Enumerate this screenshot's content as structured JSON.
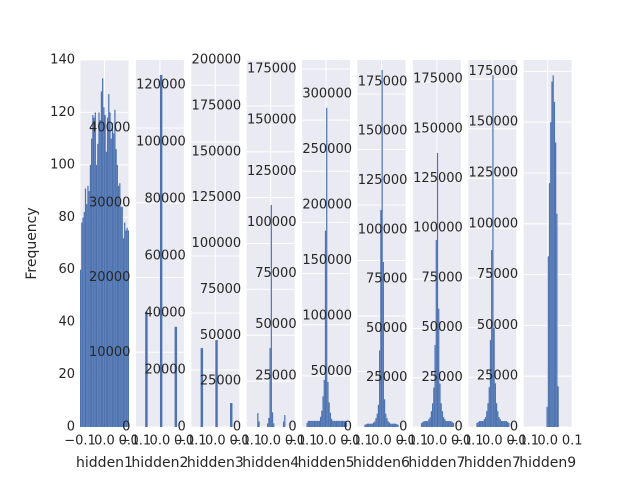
{
  "chart_data": [
    {
      "type": "histogram",
      "xlabel": "hidden1",
      "ylabel": "Frequency",
      "color": "#4c72b0",
      "grid": true,
      "bins": [
        -0.1,
        -0.095,
        -0.09,
        -0.085,
        -0.08,
        -0.075,
        -0.07,
        -0.065,
        -0.06,
        -0.055,
        -0.05,
        -0.045,
        -0.04,
        -0.035,
        -0.03,
        -0.025,
        -0.02,
        -0.015,
        -0.01,
        -0.005,
        0,
        0.005,
        0.01,
        0.015,
        0.02,
        0.025,
        0.03,
        0.035,
        0.04,
        0.045,
        0.05,
        0.055,
        0.06,
        0.065,
        0.07,
        0.075,
        0.08,
        0.085,
        0.09,
        0.095,
        0.1
      ],
      "values": [
        60,
        78,
        80,
        82,
        91,
        85,
        92,
        90,
        100,
        110,
        119,
        118,
        120,
        100,
        108,
        120,
        117,
        128,
        133,
        122,
        119,
        105,
        118,
        127,
        120,
        110,
        116,
        112,
        121,
        106,
        100,
        92,
        93,
        84,
        84,
        72,
        78,
        75,
        76,
        75
      ],
      "xlim": [
        -0.1,
        0.1
      ],
      "xticks": [
        {
          "value": -0.1,
          "label": "−0.1"
        },
        {
          "value": 0,
          "label": "0.0"
        },
        {
          "value": 0.1,
          "label": "0.1"
        }
      ],
      "ylim": [
        0,
        140
      ],
      "yticks": [
        0,
        20,
        40,
        60,
        80,
        100,
        120,
        140
      ]
    },
    {
      "type": "histogram",
      "xlabel": "hidden2",
      "color": "#4c72b0",
      "grid": true,
      "bins": [
        -0.1,
        -0.09,
        -0.08,
        -0.07,
        -0.06,
        -0.05,
        -0.04,
        -0.03,
        -0.02,
        -0.01,
        0,
        0.01,
        0.02,
        0.03,
        0.04,
        0.05,
        0.06,
        0.07,
        0.08,
        0.09,
        0.1
      ],
      "values": [
        0,
        0,
        0,
        0,
        15400,
        0,
        0,
        0,
        0,
        0,
        47100,
        0,
        0,
        0,
        0,
        0,
        13400,
        0,
        0,
        0
      ],
      "xlim": [
        -0.1,
        0.1
      ],
      "xticks": [
        {
          "value": -0.1,
          "label": "−0.1"
        },
        {
          "value": 0,
          "label": "0.0"
        },
        {
          "value": 0.1,
          "label": "0.1"
        }
      ],
      "ylim": [
        0,
        49100
      ],
      "yticks": [
        0,
        10000,
        20000,
        30000,
        40000
      ]
    },
    {
      "type": "histogram",
      "xlabel": "hidden3",
      "color": "#4c72b0",
      "grid": true,
      "bins": [
        -0.1,
        -0.09,
        -0.08,
        -0.07,
        -0.06,
        -0.05,
        -0.04,
        -0.03,
        -0.02,
        -0.01,
        0,
        0.01,
        0.02,
        0.03,
        0.04,
        0.05,
        0.06,
        0.07,
        0.08,
        0.09,
        0.1
      ],
      "values": [
        0,
        0,
        0,
        0,
        27700,
        0,
        0,
        0,
        0,
        0,
        30500,
        0,
        0,
        0,
        0,
        0,
        8400,
        0,
        0,
        0
      ],
      "xlim": [
        -0.1,
        0.1
      ],
      "xticks": [
        {
          "value": -0.1,
          "label": "−0.1"
        },
        {
          "value": 0,
          "label": "0.0"
        },
        {
          "value": 0.1,
          "label": "0.1"
        }
      ],
      "ylim": [
        0,
        128800
      ],
      "yticks": [
        0,
        20000,
        40000,
        60000,
        80000,
        100000,
        120000
      ]
    },
    {
      "type": "histogram",
      "xlabel": "hidden4",
      "color": "#4c72b0",
      "grid": true,
      "bins": [
        -0.1,
        -0.095,
        -0.09,
        -0.085,
        -0.08,
        -0.075,
        -0.07,
        -0.065,
        -0.06,
        -0.055,
        -0.05,
        -0.045,
        -0.04,
        -0.035,
        -0.03,
        -0.025,
        -0.02,
        -0.015,
        -0.01,
        -0.005,
        0,
        0.005,
        0.01,
        0.015,
        0.02,
        0.025,
        0.03,
        0.035,
        0.04,
        0.045,
        0.05,
        0.055,
        0.06,
        0.065,
        0.07,
        0.075,
        0.08,
        0.085,
        0.09,
        0.095,
        0.1
      ],
      "values": [
        0,
        0,
        0,
        0,
        0,
        0,
        0,
        0,
        0,
        7600,
        3000,
        0,
        0,
        0,
        0,
        0,
        0,
        2000,
        5000,
        43000,
        121000,
        8000,
        2000,
        0,
        0,
        0,
        0,
        0,
        0,
        0,
        3000,
        6500,
        0,
        0,
        0,
        0,
        0,
        0,
        0,
        0
      ],
      "xlim": [
        -0.1,
        0.1
      ],
      "xticks": [
        {
          "value": -0.1,
          "label": "−0.1"
        },
        {
          "value": 0,
          "label": "0.0"
        },
        {
          "value": 0.1,
          "label": "0.1"
        }
      ],
      "ylim": [
        0,
        200000
      ],
      "yticks": [
        0,
        25000,
        50000,
        75000,
        100000,
        125000,
        150000,
        175000,
        200000
      ]
    },
    {
      "type": "histogram",
      "xlabel": "hidden5",
      "color": "#4c72b0",
      "grid": true,
      "bins": [
        -0.1,
        -0.095,
        -0.09,
        -0.085,
        -0.08,
        -0.075,
        -0.07,
        -0.065,
        -0.06,
        -0.055,
        -0.05,
        -0.045,
        -0.04,
        -0.035,
        -0.03,
        -0.025,
        -0.02,
        -0.015,
        -0.01,
        -0.005,
        0,
        0.005,
        0.01,
        0.015,
        0.02,
        0.025,
        0.03,
        0.035,
        0.04,
        0.045,
        0.05,
        0.055,
        0.06,
        0.065,
        0.07,
        0.075,
        0.08,
        0.085,
        0.09,
        0.095,
        0.1
      ],
      "values": [
        0,
        0,
        0,
        0,
        2000,
        3000,
        3000,
        3000,
        3000,
        3000,
        3000,
        3000,
        3000,
        3000,
        3000,
        5000,
        8000,
        15000,
        23000,
        96000,
        156000,
        22000,
        12000,
        7000,
        4000,
        3000,
        3000,
        3000,
        3000,
        3000,
        3000,
        3000,
        3000,
        3000,
        3000,
        3000,
        2000,
        0,
        0,
        0
      ],
      "xlim": [
        -0.1,
        0.1
      ],
      "xticks": [
        {
          "value": -0.1,
          "label": "−0.1"
        },
        {
          "value": 0,
          "label": "0.0"
        },
        {
          "value": 0.1,
          "label": "0.1"
        }
      ],
      "ylim": [
        0,
        179400
      ],
      "yticks": [
        0,
        25000,
        50000,
        75000,
        100000,
        125000,
        150000,
        175000
      ]
    },
    {
      "type": "histogram",
      "xlabel": "hidden6",
      "color": "#4c72b0",
      "grid": true,
      "bins": [
        -0.1,
        -0.095,
        -0.09,
        -0.085,
        -0.08,
        -0.075,
        -0.07,
        -0.065,
        -0.06,
        -0.055,
        -0.05,
        -0.045,
        -0.04,
        -0.035,
        -0.03,
        -0.025,
        -0.02,
        -0.015,
        -0.01,
        -0.005,
        0,
        0.005,
        0.01,
        0.015,
        0.02,
        0.025,
        0.03,
        0.035,
        0.04,
        0.045,
        0.05,
        0.055,
        0.06,
        0.065,
        0.07,
        0.075,
        0.08,
        0.085,
        0.09,
        0.095,
        0.1
      ],
      "values": [
        0,
        0,
        0,
        0,
        0,
        0,
        2000,
        2500,
        3000,
        3000,
        3000,
        3000,
        3000,
        4000,
        5000,
        8000,
        12000,
        20000,
        69000,
        195500,
        321600,
        148600,
        25000,
        12000,
        8000,
        5000,
        4000,
        3000,
        3000,
        3000,
        3000,
        3000,
        2500,
        2000,
        0,
        0,
        0,
        0,
        0,
        0
      ],
      "xlim": [
        -0.1,
        0.1
      ],
      "xticks": [
        {
          "value": -0.1,
          "label": "−0.1"
        },
        {
          "value": 0,
          "label": "0.0"
        },
        {
          "value": 0.1,
          "label": "0.1"
        }
      ],
      "ylim": [
        0,
        330600
      ],
      "yticks": [
        0,
        50000,
        100000,
        150000,
        200000,
        250000,
        300000
      ]
    },
    {
      "type": "histogram",
      "xlabel": "hidden7",
      "color": "#4c72b0",
      "grid": true,
      "bins": [
        -0.1,
        -0.095,
        -0.09,
        -0.085,
        -0.08,
        -0.075,
        -0.07,
        -0.065,
        -0.06,
        -0.055,
        -0.05,
        -0.045,
        -0.04,
        -0.035,
        -0.03,
        -0.025,
        -0.02,
        -0.015,
        -0.01,
        -0.005,
        0,
        0.005,
        0.01,
        0.015,
        0.02,
        0.025,
        0.03,
        0.035,
        0.04,
        0.045,
        0.05,
        0.055,
        0.06,
        0.065,
        0.07,
        0.075,
        0.08,
        0.085,
        0.09,
        0.095,
        0.1
      ],
      "values": [
        0,
        0,
        0,
        0,
        0,
        0,
        0,
        2000,
        2500,
        3000,
        3000,
        3000,
        3000,
        4000,
        5000,
        8000,
        12000,
        20000,
        41600,
        94800,
        139000,
        60000,
        22000,
        12000,
        8000,
        5000,
        4000,
        3000,
        3000,
        3000,
        3000,
        3000,
        2500,
        2000,
        0,
        0,
        0,
        0,
        0,
        0
      ],
      "xlim": [
        -0.1,
        0.1
      ],
      "xticks": [
        {
          "value": -0.1,
          "label": "−0.1"
        },
        {
          "value": 0,
          "label": "0.0"
        },
        {
          "value": 0.1,
          "label": "0.1"
        }
      ],
      "ylim": [
        0,
        186100
      ],
      "yticks": [
        0,
        25000,
        50000,
        75000,
        100000,
        125000,
        150000,
        175000
      ]
    },
    {
      "type": "histogram",
      "xlabel": "hidden7",
      "color": "#4c72b0",
      "grid": true,
      "bins": [
        -0.1,
        -0.095,
        -0.09,
        -0.085,
        -0.08,
        -0.075,
        -0.07,
        -0.065,
        -0.06,
        -0.055,
        -0.05,
        -0.045,
        -0.04,
        -0.035,
        -0.03,
        -0.025,
        -0.02,
        -0.015,
        -0.01,
        -0.005,
        0,
        0.005,
        0.01,
        0.015,
        0.02,
        0.025,
        0.03,
        0.035,
        0.04,
        0.045,
        0.05,
        0.055,
        0.06,
        0.065,
        0.07,
        0.075,
        0.08,
        0.085,
        0.09,
        0.095,
        0.1
      ],
      "values": [
        0,
        0,
        0,
        0,
        0,
        0,
        0,
        2000,
        2500,
        3000,
        3000,
        3000,
        3000,
        4000,
        5000,
        8000,
        12000,
        20000,
        43800,
        89000,
        177000,
        50000,
        22000,
        12000,
        8000,
        5000,
        4000,
        3000,
        3000,
        3000,
        3000,
        3000,
        2500,
        2000,
        0,
        0,
        0,
        0,
        0,
        0
      ],
      "xlim": [
        -0.1,
        0.1
      ],
      "xticks": [
        {
          "value": -0.1,
          "label": "−0.1"
        },
        {
          "value": 0,
          "label": "0.0"
        },
        {
          "value": 0.1,
          "label": "0.1"
        }
      ],
      "ylim": [
        0,
        184600
      ],
      "yticks": [
        0,
        25000,
        50000,
        75000,
        100000,
        125000,
        150000,
        175000
      ]
    },
    {
      "type": "histogram",
      "xlabel": "hidden9",
      "color": "#4c72b0",
      "grid": true,
      "bins": [
        -0.1,
        -0.095,
        -0.09,
        -0.085,
        -0.08,
        -0.075,
        -0.07,
        -0.065,
        -0.06,
        -0.055,
        -0.05,
        -0.045,
        -0.04,
        -0.035,
        -0.03,
        -0.025,
        -0.02,
        -0.015,
        -0.01,
        -0.005,
        0,
        0.005,
        0.01,
        0.015,
        0.02,
        0.025,
        0.03,
        0.035,
        0.04,
        0.045,
        0.05,
        0.055,
        0.06,
        0.065,
        0.07,
        0.075,
        0.08,
        0.085,
        0.09,
        0.095,
        0.1
      ],
      "values": [
        0,
        0,
        0,
        0,
        0,
        0,
        0,
        0,
        0,
        0,
        0,
        0,
        0,
        0,
        0,
        0,
        0,
        0,
        0,
        10000,
        84000,
        120000,
        150000,
        170000,
        173000,
        160000,
        140000,
        105000,
        20000,
        0,
        0,
        0,
        0,
        0,
        0,
        0,
        0,
        0,
        0,
        0
      ],
      "xlim": [
        -0.1,
        0.1
      ],
      "xticks": [
        {
          "value": -0.1,
          "label": "−0.1"
        },
        {
          "value": 0,
          "label": "0.0"
        },
        {
          "value": 0.1,
          "label": "0.1"
        }
      ],
      "ylim": [
        0,
        180600
      ],
      "yticks": [
        0,
        25000,
        50000,
        75000,
        100000,
        125000,
        150000,
        175000
      ]
    }
  ]
}
